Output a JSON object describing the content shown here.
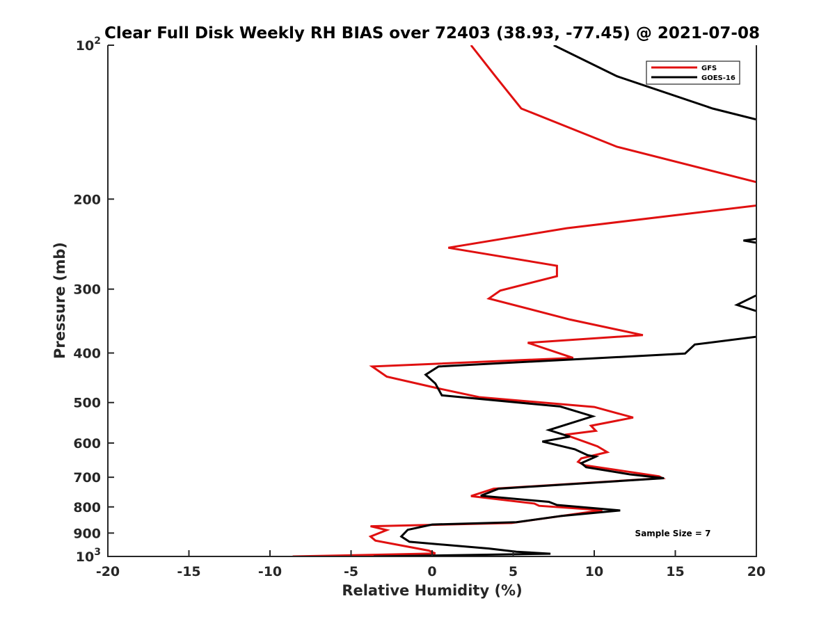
{
  "chart_data": {
    "type": "line",
    "title": "Clear Full Disk Weekly RH BIAS over 72403 (38.93, -77.45) @ 2021-07-08",
    "xlabel": "Relative Humidity (%)",
    "ylabel": "Pressure (mb)",
    "xlim": [
      -20,
      20
    ],
    "ylim": [
      100,
      1000
    ],
    "y_scale": "log",
    "y_reversed": true,
    "grid": false,
    "legend_position": "top-right",
    "x_ticks": [
      {
        "value": -20,
        "label": "-20"
      },
      {
        "value": -15,
        "label": "-15"
      },
      {
        "value": -10,
        "label": "-10"
      },
      {
        "value": -5,
        "label": "-5"
      },
      {
        "value": 0,
        "label": "0"
      },
      {
        "value": 5,
        "label": "5"
      },
      {
        "value": 10,
        "label": "10"
      },
      {
        "value": 15,
        "label": "15"
      },
      {
        "value": 20,
        "label": "20"
      }
    ],
    "y_ticks": [
      {
        "value": 100,
        "label": "10",
        "sup": "2"
      },
      {
        "value": 200,
        "label": "200"
      },
      {
        "value": 300,
        "label": "300"
      },
      {
        "value": 400,
        "label": "400"
      },
      {
        "value": 500,
        "label": "500"
      },
      {
        "value": 600,
        "label": "600"
      },
      {
        "value": 700,
        "label": "700"
      },
      {
        "value": 800,
        "label": "800"
      },
      {
        "value": 900,
        "label": "900"
      },
      {
        "value": 1000,
        "label": "10",
        "sup": "3"
      }
    ],
    "annotation": "Sample Size = 7",
    "series": [
      {
        "name": "GFS",
        "color": "#e01010",
        "points": [
          [
            2.4,
            100
          ],
          [
            3.9,
            115
          ],
          [
            5.5,
            133
          ],
          [
            11.4,
            158
          ],
          [
            20.5,
            187
          ],
          [
            20.5,
            205
          ],
          [
            8.3,
            228
          ],
          [
            1.0,
            249
          ],
          [
            7.7,
            270
          ],
          [
            7.7,
            283
          ],
          [
            4.2,
            302
          ],
          [
            3.5,
            313
          ],
          [
            8.5,
            344
          ],
          [
            13.0,
            369
          ],
          [
            5.9,
            382
          ],
          [
            8.7,
            409
          ],
          [
            -3.7,
            425
          ],
          [
            -2.8,
            445
          ],
          [
            0.5,
            470
          ],
          [
            2.9,
            488
          ],
          [
            10.0,
            510
          ],
          [
            12.4,
            535
          ],
          [
            9.8,
            555
          ],
          [
            10.1,
            568
          ],
          [
            8.2,
            578
          ],
          [
            10.2,
            609
          ],
          [
            10.8,
            625
          ],
          [
            9.2,
            643
          ],
          [
            9.0,
            653
          ],
          [
            9.4,
            663
          ],
          [
            14.0,
            697
          ],
          [
            14.2,
            703
          ],
          [
            3.8,
            737
          ],
          [
            2.4,
            762
          ],
          [
            6.3,
            788
          ],
          [
            6.6,
            796
          ],
          [
            10.5,
            812
          ],
          [
            4.9,
            860
          ],
          [
            -3.8,
            873
          ],
          [
            -2.8,
            888
          ],
          [
            -3.8,
            914
          ],
          [
            -3.5,
            931
          ],
          [
            -0.2,
            974
          ],
          [
            0.2,
            987
          ],
          [
            -8.6,
            1000
          ]
        ]
      },
      {
        "name": "GOES-16",
        "color": "#000000",
        "points": [
          [
            7.5,
            100
          ],
          [
            11.4,
            115
          ],
          [
            17.3,
            133
          ],
          [
            20.5,
            141
          ],
          [
            null,
            null
          ],
          [
            20.5,
            238
          ],
          [
            19.2,
            241
          ],
          [
            20.5,
            245
          ],
          [
            null,
            null
          ],
          [
            20.5,
            303
          ],
          [
            18.8,
            322
          ],
          [
            20.5,
            335
          ],
          [
            null,
            null
          ],
          [
            20.5,
            370
          ],
          [
            16.2,
            385
          ],
          [
            15.6,
            401
          ],
          [
            0.4,
            425
          ],
          [
            -0.4,
            441
          ],
          [
            0.2,
            459
          ],
          [
            0.6,
            484
          ],
          [
            7.9,
            509
          ],
          [
            9.9,
            532
          ],
          [
            7.2,
            566
          ],
          [
            8.5,
            583
          ],
          [
            6.8,
            596
          ],
          [
            8.8,
            617
          ],
          [
            9.6,
            634
          ],
          [
            10.1,
            638
          ],
          [
            9.2,
            657
          ],
          [
            9.5,
            669
          ],
          [
            12.2,
            691
          ],
          [
            14.3,
            703
          ],
          [
            4.1,
            737
          ],
          [
            3.0,
            761
          ],
          [
            7.2,
            782
          ],
          [
            7.7,
            793
          ],
          [
            11.6,
            813
          ],
          [
            8.0,
            833
          ],
          [
            5.2,
            857
          ],
          [
            0.0,
            866
          ],
          [
            -1.5,
            887
          ],
          [
            -1.9,
            914
          ],
          [
            -1.4,
            936
          ],
          [
            3.5,
            965
          ],
          [
            5.2,
            979
          ],
          [
            7.3,
            988
          ],
          [
            -3.6,
            1000
          ]
        ]
      }
    ]
  }
}
